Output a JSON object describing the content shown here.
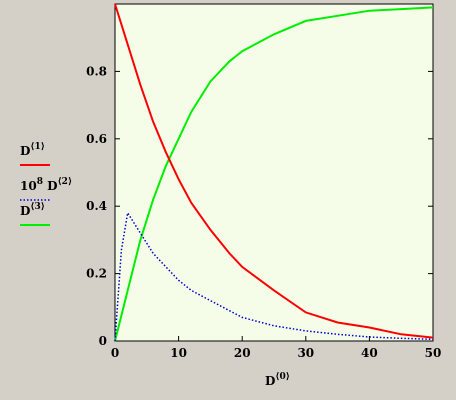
{
  "chart_data": {
    "type": "line",
    "xlim": [
      0,
      50
    ],
    "ylim": [
      0,
      1
    ],
    "x_ticks": [
      0,
      10,
      20,
      30,
      40,
      50
    ],
    "y_ticks": [
      0,
      0.2,
      0.4,
      0.6,
      0.8
    ],
    "xlabel": {
      "base": "D",
      "sup": "⟨0⟩"
    },
    "legend_position": "left",
    "series": [
      {
        "name": {
          "base": "D",
          "sup": "⟨1⟩"
        },
        "color": "#ff0000",
        "style": "solid",
        "x": [
          0,
          2,
          4,
          6,
          8,
          10,
          12,
          15,
          18,
          20,
          25,
          30,
          35,
          40,
          45,
          50
        ],
        "y": [
          1.0,
          0.88,
          0.76,
          0.65,
          0.56,
          0.48,
          0.41,
          0.33,
          0.26,
          0.22,
          0.15,
          0.085,
          0.055,
          0.04,
          0.02,
          0.01
        ]
      },
      {
        "name": {
          "prefix": "10",
          "prefix_sup": "8",
          "base": "D",
          "sup": "⟨2⟩"
        },
        "color": "#0000cc",
        "style": "dotted",
        "x": [
          0,
          1,
          2,
          3,
          4,
          6,
          8,
          10,
          12,
          15,
          18,
          20,
          25,
          30,
          35,
          40,
          45,
          50
        ],
        "y": [
          0,
          0.27,
          0.38,
          0.35,
          0.32,
          0.26,
          0.22,
          0.18,
          0.15,
          0.12,
          0.09,
          0.07,
          0.045,
          0.03,
          0.02,
          0.012,
          0.008,
          0.005
        ]
      },
      {
        "name": {
          "base": "D",
          "sup": "⟨3⟩"
        },
        "color": "#00ee00",
        "style": "solid",
        "x": [
          0,
          2,
          4,
          6,
          8,
          10,
          12,
          15,
          18,
          20,
          25,
          30,
          35,
          40,
          45,
          50
        ],
        "y": [
          0,
          0.15,
          0.3,
          0.42,
          0.52,
          0.6,
          0.68,
          0.77,
          0.83,
          0.86,
          0.91,
          0.95,
          0.965,
          0.98,
          0.985,
          0.99
        ]
      }
    ]
  }
}
